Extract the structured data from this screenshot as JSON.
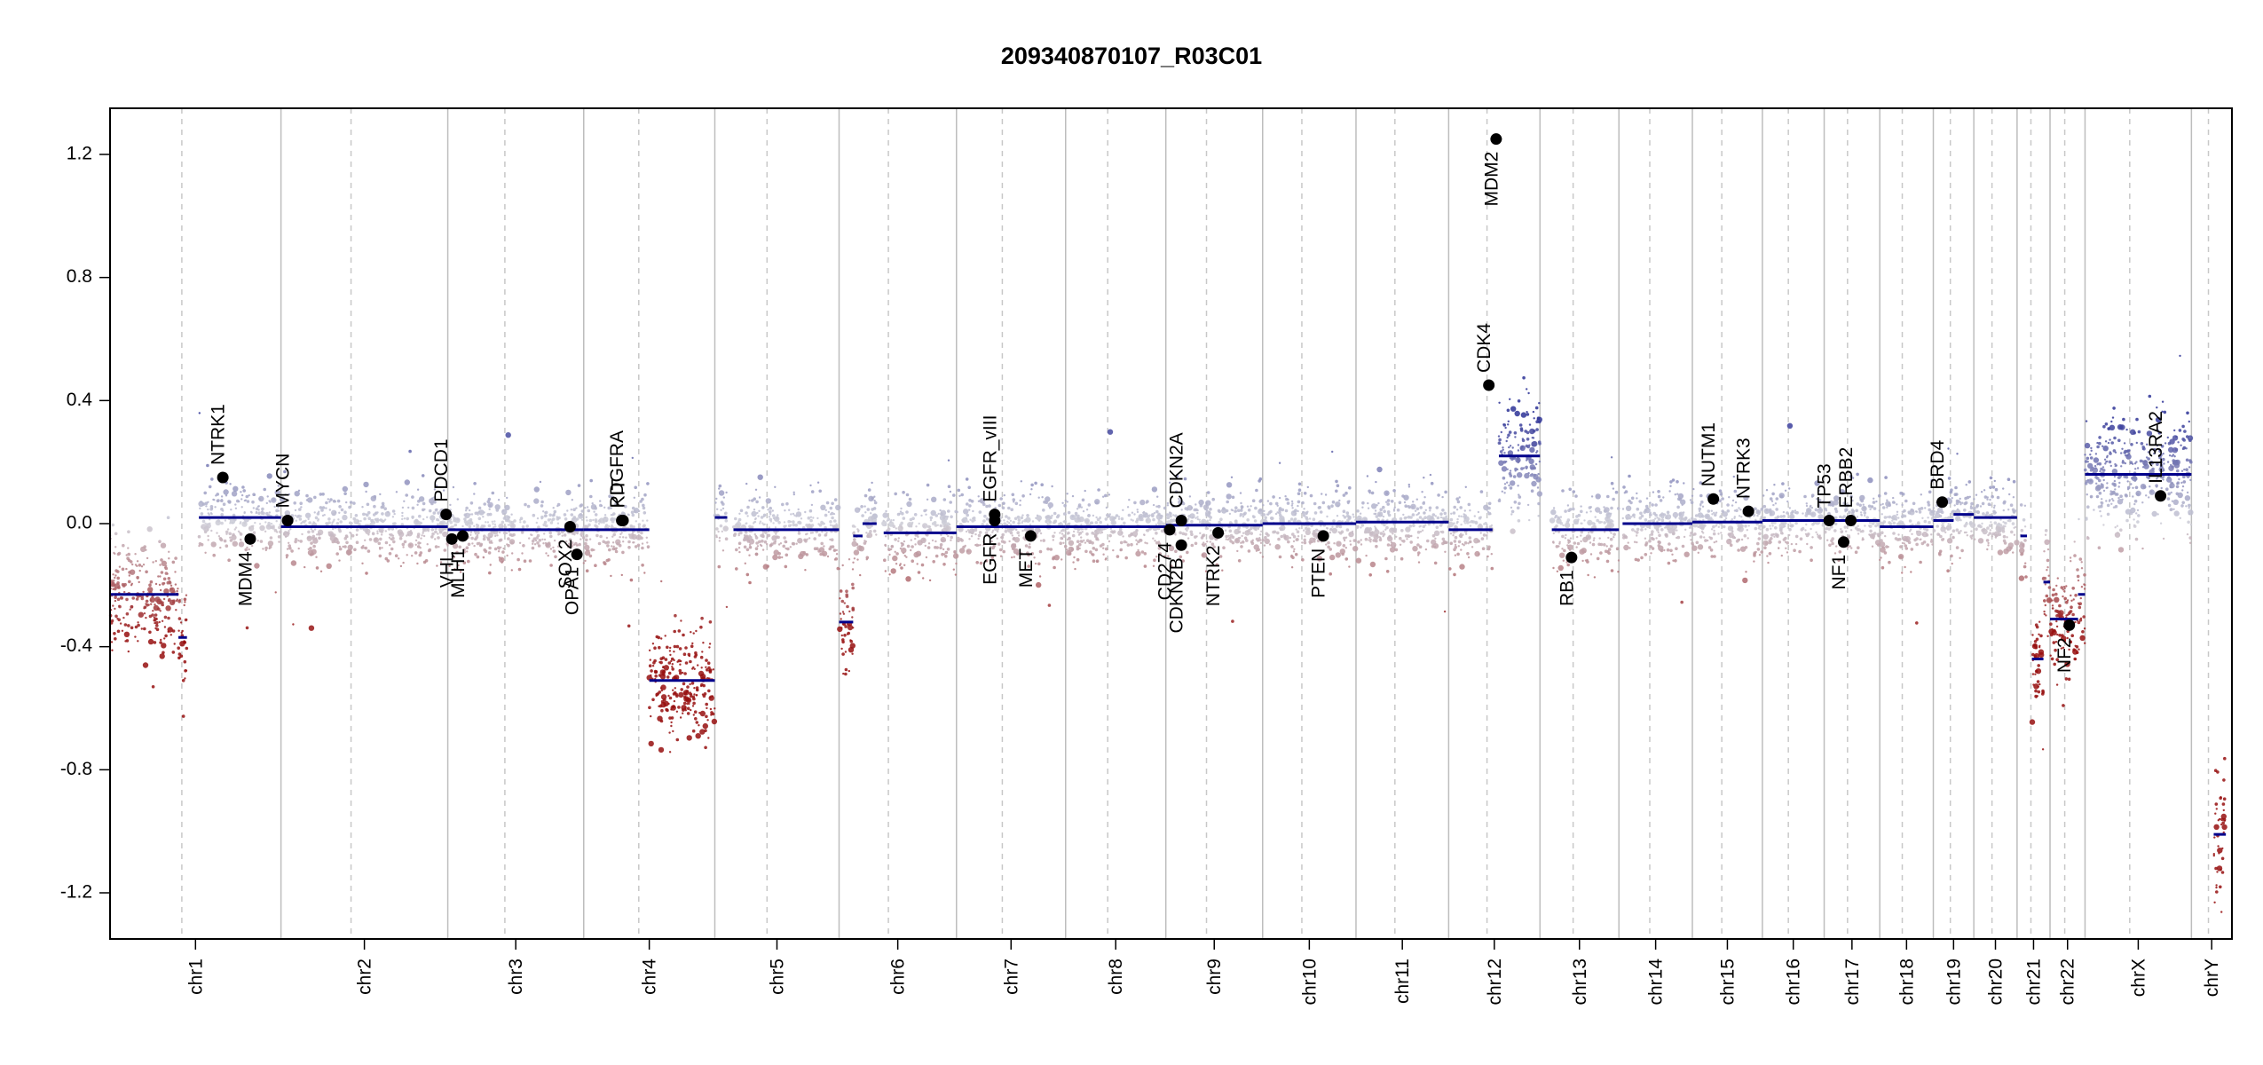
{
  "chart_data": {
    "type": "scatter",
    "title": "209340870107_R03C01",
    "xlabel": "",
    "ylabel": "",
    "ylim": [
      -1.35,
      1.35
    ],
    "y_ticks": [
      -1.2,
      -0.8,
      -0.4,
      0.0,
      0.4,
      0.8,
      1.2
    ],
    "y_tick_labels": [
      "-1.2",
      "-0.8",
      "-0.4",
      "0.0",
      "0.4",
      "0.8",
      "1.2"
    ],
    "grid": false,
    "colors": {
      "gain": "#3b3f99",
      "neutral": "#c8c8d0",
      "loss": "#a01010",
      "segment": "#00008b",
      "gene": "#000000"
    },
    "chromosomes": [
      {
        "name": "chr1",
        "size": 249
      },
      {
        "name": "chr2",
        "size": 243
      },
      {
        "name": "chr3",
        "size": 198
      },
      {
        "name": "chr4",
        "size": 191
      },
      {
        "name": "chr5",
        "size": 181
      },
      {
        "name": "chr6",
        "size": 171
      },
      {
        "name": "chr7",
        "size": 159
      },
      {
        "name": "chr8",
        "size": 146
      },
      {
        "name": "chr9",
        "size": 141
      },
      {
        "name": "chr10",
        "size": 136
      },
      {
        "name": "chr11",
        "size": 135
      },
      {
        "name": "chr12",
        "size": 133
      },
      {
        "name": "chr13",
        "size": 115
      },
      {
        "name": "chr14",
        "size": 107
      },
      {
        "name": "chr15",
        "size": 102
      },
      {
        "name": "chr16",
        "size": 90
      },
      {
        "name": "chr17",
        "size": 81
      },
      {
        "name": "chr18",
        "size": 78
      },
      {
        "name": "chr19",
        "size": 59
      },
      {
        "name": "chr20",
        "size": 63
      },
      {
        "name": "chr21",
        "size": 48
      },
      {
        "name": "chr22",
        "size": 51
      },
      {
        "name": "chrX",
        "size": 155
      },
      {
        "name": "chrY",
        "size": 59
      }
    ],
    "segments": [
      {
        "chr": 0,
        "start": 0.0,
        "end": 0.4,
        "value": -0.23
      },
      {
        "chr": 0,
        "start": 0.4,
        "end": 0.45,
        "value": -0.37
      },
      {
        "chr": 0,
        "start": 0.52,
        "end": 1.0,
        "value": 0.02
      },
      {
        "chr": 1,
        "start": 0.0,
        "end": 1.0,
        "value": -0.01
      },
      {
        "chr": 2,
        "start": 0.0,
        "end": 1.0,
        "value": -0.02
      },
      {
        "chr": 3,
        "start": 0.0,
        "end": 0.5,
        "value": -0.02
      },
      {
        "chr": 3,
        "start": 0.5,
        "end": 1.0,
        "value": -0.51
      },
      {
        "chr": 4,
        "start": 0.0,
        "end": 0.1,
        "value": 0.02
      },
      {
        "chr": 4,
        "start": 0.15,
        "end": 1.0,
        "value": -0.02
      },
      {
        "chr": 5,
        "start": 0.0,
        "end": 0.12,
        "value": -0.32
      },
      {
        "chr": 5,
        "start": 0.12,
        "end": 0.2,
        "value": -0.04
      },
      {
        "chr": 5,
        "start": 0.2,
        "end": 0.32,
        "value": 0.0
      },
      {
        "chr": 5,
        "start": 0.38,
        "end": 1.0,
        "value": -0.03
      },
      {
        "chr": 6,
        "start": 0.0,
        "end": 1.0,
        "value": -0.01
      },
      {
        "chr": 7,
        "start": 0.0,
        "end": 1.0,
        "value": -0.01
      },
      {
        "chr": 8,
        "start": 0.0,
        "end": 1.0,
        "value": -0.005
      },
      {
        "chr": 9,
        "start": 0.0,
        "end": 1.0,
        "value": 0.0
      },
      {
        "chr": 10,
        "start": 0.0,
        "end": 1.0,
        "value": 0.005
      },
      {
        "chr": 11,
        "start": 0.0,
        "end": 0.48,
        "value": -0.02
      },
      {
        "chr": 11,
        "start": 0.55,
        "end": 1.0,
        "value": 0.22
      },
      {
        "chr": 12,
        "start": 0.15,
        "end": 1.0,
        "value": -0.02
      },
      {
        "chr": 13,
        "start": 0.05,
        "end": 1.0,
        "value": 0.0
      },
      {
        "chr": 14,
        "start": 0.0,
        "end": 1.0,
        "value": 0.005
      },
      {
        "chr": 15,
        "start": 0.0,
        "end": 1.0,
        "value": 0.01
      },
      {
        "chr": 16,
        "start": 0.0,
        "end": 0.5,
        "value": 0.01
      },
      {
        "chr": 16,
        "start": 0.5,
        "end": 1.0,
        "value": 0.01
      },
      {
        "chr": 17,
        "start": 0.0,
        "end": 1.0,
        "value": -0.01
      },
      {
        "chr": 18,
        "start": 0.0,
        "end": 0.5,
        "value": 0.01
      },
      {
        "chr": 18,
        "start": 0.5,
        "end": 1.0,
        "value": 0.03
      },
      {
        "chr": 19,
        "start": 0.0,
        "end": 1.0,
        "value": 0.02
      },
      {
        "chr": 20,
        "start": 0.1,
        "end": 0.3,
        "value": -0.04
      },
      {
        "chr": 20,
        "start": 0.45,
        "end": 0.8,
        "value": -0.44
      },
      {
        "chr": 20,
        "start": 0.8,
        "end": 1.0,
        "value": -0.19
      },
      {
        "chr": 21,
        "start": 0.0,
        "end": 0.3,
        "value": -0.31
      },
      {
        "chr": 21,
        "start": 0.3,
        "end": 0.8,
        "value": -0.31
      },
      {
        "chr": 21,
        "start": 0.8,
        "end": 1.0,
        "value": -0.23
      },
      {
        "chr": 22,
        "start": 0.0,
        "end": 1.0,
        "value": 0.16
      },
      {
        "chr": 23,
        "start": 0.55,
        "end": 0.85,
        "value": -1.01
      }
    ],
    "genes": [
      {
        "name": "NTRK1",
        "chr": 0,
        "pos": 0.66,
        "value": 0.15,
        "label_side": "above"
      },
      {
        "name": "MDM4",
        "chr": 0,
        "pos": 0.82,
        "value": -0.05,
        "label_side": "below"
      },
      {
        "name": "MYCN",
        "chr": 1,
        "pos": 0.04,
        "value": 0.01,
        "label_side": "above"
      },
      {
        "name": "PDCD1",
        "chr": 1,
        "pos": 0.99,
        "value": 0.03,
        "label_side": "above"
      },
      {
        "name": "VHL",
        "chr": 2,
        "pos": 0.03,
        "value": -0.05,
        "label_side": "below"
      },
      {
        "name": "MLH1",
        "chr": 2,
        "pos": 0.11,
        "value": -0.04,
        "label_side": "below"
      },
      {
        "name": "SOX2",
        "chr": 2,
        "pos": 0.9,
        "value": -0.01,
        "label_side": "below"
      },
      {
        "name": "OPA1",
        "chr": 2,
        "pos": 0.95,
        "value": -0.1,
        "label_side": "below"
      },
      {
        "name": "PDGFRA",
        "chr": 3,
        "pos": 0.29,
        "value": 0.01,
        "label_side": "above"
      },
      {
        "name": "KIT",
        "chr": 3,
        "pos": 0.3,
        "value": 0.01,
        "label_side": "above"
      },
      {
        "name": "EGFR",
        "chr": 6,
        "pos": 0.35,
        "value": 0.01,
        "label_side": "below"
      },
      {
        "name": "EGFR_vIII",
        "chr": 6,
        "pos": 0.35,
        "value": 0.03,
        "label_side": "above"
      },
      {
        "name": "MET",
        "chr": 6,
        "pos": 0.68,
        "value": -0.04,
        "label_side": "below"
      },
      {
        "name": "CD274",
        "chr": 8,
        "pos": 0.04,
        "value": -0.02,
        "label_side": "below"
      },
      {
        "name": "CDKN2A",
        "chr": 8,
        "pos": 0.16,
        "value": 0.01,
        "label_side": "above"
      },
      {
        "name": "CDKN2B",
        "chr": 8,
        "pos": 0.16,
        "value": -0.07,
        "label_side": "below"
      },
      {
        "name": "NTRK2",
        "chr": 8,
        "pos": 0.54,
        "value": -0.03,
        "label_side": "below"
      },
      {
        "name": "PTEN",
        "chr": 9,
        "pos": 0.65,
        "value": -0.04,
        "label_side": "below"
      },
      {
        "name": "CDK4",
        "chr": 11,
        "pos": 0.44,
        "value": 0.45,
        "label_side": "above"
      },
      {
        "name": "MDM2",
        "chr": 11,
        "pos": 0.52,
        "value": 1.25,
        "label_side": "below"
      },
      {
        "name": "RB1",
        "chr": 12,
        "pos": 0.4,
        "value": -0.11,
        "label_side": "below"
      },
      {
        "name": "NUTM1",
        "chr": 14,
        "pos": 0.3,
        "value": 0.08,
        "label_side": "above"
      },
      {
        "name": "NTRK3",
        "chr": 14,
        "pos": 0.8,
        "value": 0.04,
        "label_side": "above"
      },
      {
        "name": "TP53",
        "chr": 16,
        "pos": 0.09,
        "value": 0.01,
        "label_side": "above"
      },
      {
        "name": "ERBB2",
        "chr": 16,
        "pos": 0.48,
        "value": 0.01,
        "label_side": "above"
      },
      {
        "name": "NF1",
        "chr": 16,
        "pos": 0.35,
        "value": -0.06,
        "label_side": "below"
      },
      {
        "name": "BRD4",
        "chr": 18,
        "pos": 0.22,
        "value": 0.07,
        "label_side": "above"
      },
      {
        "name": "NF2",
        "chr": 21,
        "pos": 0.55,
        "value": -0.33,
        "label_side": "below"
      },
      {
        "name": "IL13RA2",
        "chr": 22,
        "pos": 0.71,
        "value": 0.09,
        "label_side": "above"
      }
    ]
  }
}
